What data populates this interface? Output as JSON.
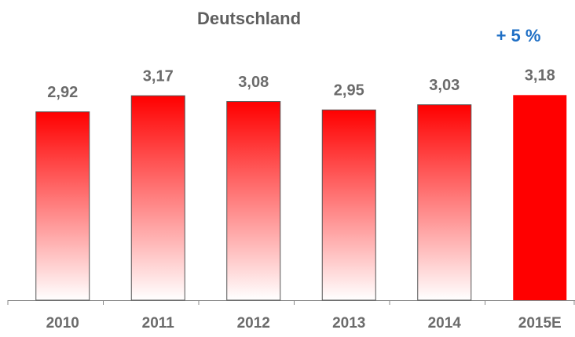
{
  "chart_data": {
    "type": "bar",
    "title": "Deutschland",
    "annotation": "+ 5 %",
    "categories": [
      "2010",
      "2011",
      "2012",
      "2013",
      "2014",
      "2015E"
    ],
    "values": [
      2.92,
      3.17,
      3.08,
      2.95,
      3.03,
      3.18
    ],
    "value_labels": [
      "2,92",
      "3,17",
      "3,08",
      "2,95",
      "3,03",
      "3,18"
    ],
    "color": "#ff0000",
    "fill_styles": [
      "gradient",
      "gradient",
      "gradient",
      "gradient",
      "gradient",
      "solid"
    ],
    "ylim": [
      0,
      3.5
    ]
  }
}
